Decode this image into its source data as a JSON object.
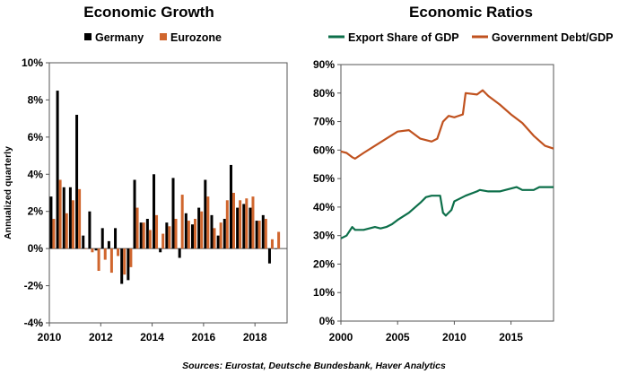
{
  "source": "Sources: Eurostat, Deutsche Bundesbank, Haver Analytics",
  "colors": {
    "germany": "#000000",
    "eurozone": "#d0662e",
    "export": "#0d6f4a",
    "debt": "#c0521f"
  },
  "chart_data": [
    {
      "type": "bar",
      "title": "Economic Growth",
      "ylabel": "Annualized quarterly",
      "xlabel": "",
      "ylim": [
        -4,
        10
      ],
      "xlim": [
        2010,
        2019.25
      ],
      "yticks": [
        "-4%",
        "-2%",
        "0%",
        "2%",
        "4%",
        "6%",
        "8%",
        "10%"
      ],
      "xticks": [
        "2010",
        "2012",
        "2014",
        "2016",
        "2018"
      ],
      "legend": "top",
      "grid": false,
      "x": [
        "2010Q1",
        "2010Q2",
        "2010Q3",
        "2010Q4",
        "2011Q1",
        "2011Q2",
        "2011Q3",
        "2011Q4",
        "2012Q1",
        "2012Q2",
        "2012Q3",
        "2012Q4",
        "2013Q1",
        "2013Q2",
        "2013Q3",
        "2013Q4",
        "2014Q1",
        "2014Q2",
        "2014Q3",
        "2014Q4",
        "2015Q1",
        "2015Q2",
        "2015Q3",
        "2015Q4",
        "2016Q1",
        "2016Q2",
        "2016Q3",
        "2016Q4",
        "2017Q1",
        "2017Q2",
        "2017Q3",
        "2017Q4",
        "2018Q1",
        "2018Q2",
        "2018Q3",
        "2018Q4"
      ],
      "series": [
        {
          "name": "Germany",
          "values": [
            2.8,
            8.5,
            3.3,
            3.3,
            7.2,
            0.7,
            2.0,
            -0.1,
            1.1,
            0.4,
            1.1,
            -1.9,
            -1.7,
            3.7,
            1.4,
            1.6,
            4.0,
            -0.2,
            1.4,
            3.8,
            -0.5,
            1.9,
            1.3,
            2.2,
            3.7,
            1.8,
            0.7,
            1.6,
            4.5,
            2.2,
            2.4,
            2.2,
            1.5,
            1.8,
            -0.8,
            0.0
          ]
        },
        {
          "name": "Eurozone",
          "values": [
            1.6,
            3.7,
            1.9,
            2.6,
            3.2,
            0.0,
            -0.2,
            -1.2,
            -0.6,
            -1.3,
            -0.4,
            -1.4,
            -1.0,
            2.2,
            1.4,
            1.0,
            1.8,
            0.8,
            1.2,
            1.6,
            2.9,
            1.5,
            1.6,
            2.0,
            2.8,
            1.1,
            1.4,
            2.6,
            3.0,
            2.6,
            2.7,
            2.8,
            1.5,
            1.6,
            0.5,
            0.9
          ]
        }
      ]
    },
    {
      "type": "line",
      "title": "Economic Ratios",
      "xlabel": "",
      "ylabel": "",
      "ylim": [
        0,
        90
      ],
      "xlim": [
        2000,
        2018.75
      ],
      "yticks": [
        "0%",
        "10%",
        "20%",
        "30%",
        "40%",
        "50%",
        "60%",
        "70%",
        "80%",
        "90%"
      ],
      "xticks": [
        "2000",
        "2005",
        "2010",
        "2015"
      ],
      "legend": "top",
      "grid": false,
      "series": [
        {
          "name": "Export Share of GDP",
          "x": [
            2000,
            2000.5,
            2001,
            2001.25,
            2002,
            2003,
            2003.5,
            2004,
            2004.5,
            2005,
            2006,
            2007,
            2007.5,
            2008,
            2008.5,
            2008.75,
            2009,
            2009.25,
            2009.75,
            2010,
            2011,
            2012,
            2012.25,
            2013,
            2014,
            2015,
            2015.5,
            2016,
            2017,
            2017.5,
            2018,
            2018.75
          ],
          "y": [
            29.0,
            30.0,
            33.0,
            32.0,
            32.0,
            33.0,
            32.5,
            33.0,
            34.0,
            35.5,
            38.0,
            41.5,
            43.5,
            44.0,
            44.0,
            44.0,
            38.0,
            37.0,
            39.0,
            42.0,
            44.0,
            45.5,
            46.0,
            45.5,
            45.5,
            46.5,
            47.0,
            46.0,
            46.0,
            47.0,
            47.0,
            47.0
          ]
        },
        {
          "name": "Government Debt/GDP",
          "x": [
            2000,
            2000.5,
            2001,
            2001.25,
            2002,
            2003,
            2004,
            2005,
            2006,
            2007,
            2008,
            2008.5,
            2009,
            2009.5,
            2010,
            2010.75,
            2011,
            2012,
            2012.5,
            2013,
            2014,
            2015,
            2016,
            2017,
            2018,
            2018.75
          ],
          "y": [
            59.5,
            59.0,
            57.5,
            57.0,
            59.0,
            61.5,
            64.0,
            66.5,
            67.0,
            64.0,
            63.0,
            64.0,
            70.0,
            72.0,
            71.5,
            72.5,
            80.0,
            79.5,
            81.0,
            79.0,
            76.0,
            72.5,
            69.5,
            65.0,
            61.5,
            60.5
          ]
        }
      ]
    }
  ]
}
